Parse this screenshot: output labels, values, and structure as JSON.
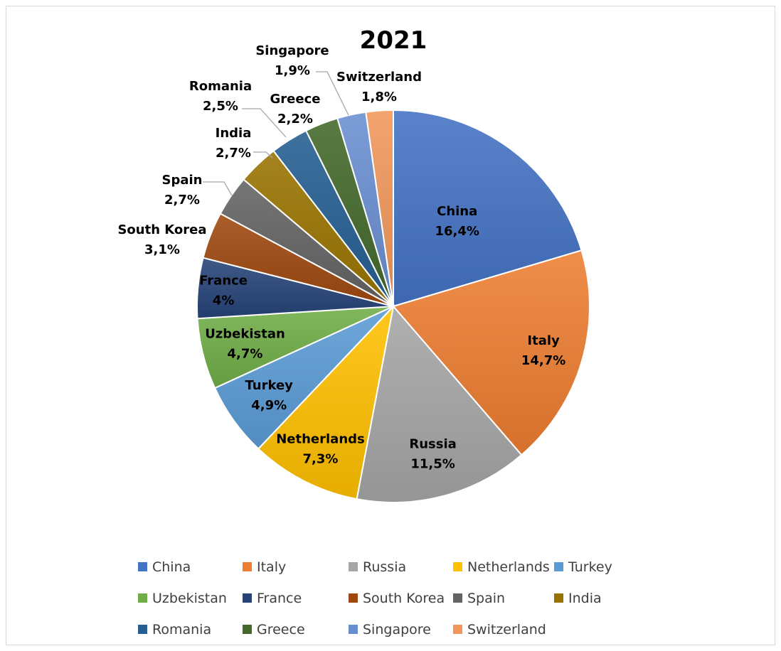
{
  "chart_data": {
    "type": "pie",
    "title": "2021",
    "slices": [
      {
        "name": "China",
        "value": 16.4,
        "label": "16,4%",
        "color": "#4472C4"
      },
      {
        "name": "Italy",
        "value": 14.7,
        "label": "14,7%",
        "color": "#ED7D31"
      },
      {
        "name": "Russia",
        "value": 11.5,
        "label": "11,5%",
        "color": "#A5A5A5"
      },
      {
        "name": "Netherlands",
        "value": 7.3,
        "label": "7,3%",
        "color": "#FFC000"
      },
      {
        "name": "Turkey",
        "value": 4.9,
        "label": "4,9%",
        "color": "#5B9BD5"
      },
      {
        "name": "Uzbekistan",
        "value": 4.7,
        "label": "4,7%",
        "color": "#70AD47"
      },
      {
        "name": "France",
        "value": 4.0,
        "label": "4%",
        "color": "#264478"
      },
      {
        "name": "South Korea",
        "value": 3.1,
        "label": "3,1%",
        "color": "#9E480E"
      },
      {
        "name": "Spain",
        "value": 2.7,
        "label": "2,7%",
        "color": "#636363"
      },
      {
        "name": "India",
        "value": 2.7,
        "label": "2,7%",
        "color": "#997300"
      },
      {
        "name": "Romania",
        "value": 2.5,
        "label": "2,5%",
        "color": "#255E91"
      },
      {
        "name": "Greece",
        "value": 2.2,
        "label": "2,2%",
        "color": "#43682B"
      },
      {
        "name": "Singapore",
        "value": 1.9,
        "label": "1,9%",
        "color": "#698ED0"
      },
      {
        "name": "Switzerland",
        "value": 1.8,
        "label": "1,8%",
        "color": "#F1975A"
      }
    ],
    "legend_position": "bottom"
  }
}
